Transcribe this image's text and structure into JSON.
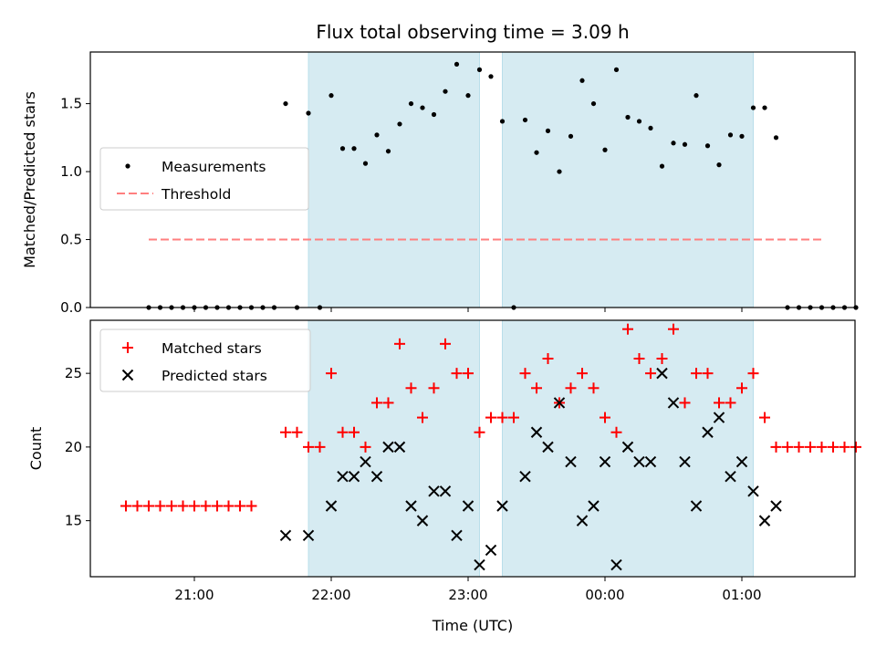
{
  "chart_data": {
    "title": "Flux total observing time = 3.09 h",
    "xlabel": "Time (UTC)",
    "x_ticks": [
      "21:00",
      "22:00",
      "23:00",
      "00:00",
      "01:00"
    ],
    "x_start": "20:30",
    "x_end": "01:40",
    "shaded_intervals": [
      [
        "21:50",
        "23:05"
      ],
      [
        "23:15",
        "01:05"
      ]
    ],
    "shade_color": "#add8e6",
    "top": {
      "type": "scatter",
      "ylabel": "Matched/Predicted stars",
      "ylim": [
        0,
        1.88
      ],
      "yticks": [
        "0.0",
        "0.5",
        "1.0",
        "1.5"
      ],
      "legend": {
        "placement": "center-left",
        "labels": [
          "Measurements",
          "Threshold"
        ]
      },
      "threshold": {
        "name": "Threshold",
        "value": 0.5,
        "x_from": "20:40",
        "x_to": "01:35",
        "color": "#ff7f7f"
      },
      "series": [
        {
          "name": "Measurements",
          "color": "#000000",
          "points": [
            [
              "20:40",
              0
            ],
            [
              "20:45",
              0
            ],
            [
              "20:50",
              0
            ],
            [
              "20:55",
              0
            ],
            [
              "21:00",
              0
            ],
            [
              "21:05",
              0
            ],
            [
              "21:10",
              0
            ],
            [
              "21:15",
              0
            ],
            [
              "21:20",
              0
            ],
            [
              "21:25",
              0
            ],
            [
              "21:30",
              0
            ],
            [
              "21:35",
              0
            ],
            [
              "21:40",
              1.5
            ],
            [
              "21:45",
              0
            ],
            [
              "21:50",
              1.43
            ],
            [
              "21:55",
              0
            ],
            [
              "22:00",
              1.56
            ],
            [
              "22:05",
              1.17
            ],
            [
              "22:10",
              1.17
            ],
            [
              "22:15",
              1.06
            ],
            [
              "22:20",
              1.27
            ],
            [
              "22:25",
              1.15
            ],
            [
              "22:30",
              1.35
            ],
            [
              "22:35",
              1.5
            ],
            [
              "22:40",
              1.47
            ],
            [
              "22:45",
              1.42
            ],
            [
              "22:50",
              1.59
            ],
            [
              "22:55",
              1.79
            ],
            [
              "23:00",
              1.56
            ],
            [
              "23:05",
              1.75
            ],
            [
              "23:10",
              1.7
            ],
            [
              "23:15",
              1.37
            ],
            [
              "23:20",
              0
            ],
            [
              "23:25",
              1.38
            ],
            [
              "23:30",
              1.14
            ],
            [
              "23:35",
              1.3
            ],
            [
              "23:40",
              1.0
            ],
            [
              "23:45",
              1.26
            ],
            [
              "23:50",
              1.67
            ],
            [
              "23:55",
              1.5
            ],
            [
              "00:00",
              1.16
            ],
            [
              "00:05",
              1.75
            ],
            [
              "00:10",
              1.4
            ],
            [
              "00:15",
              1.37
            ],
            [
              "00:20",
              1.32
            ],
            [
              "00:25",
              1.04
            ],
            [
              "00:30",
              1.21
            ],
            [
              "00:35",
              1.2
            ],
            [
              "00:40",
              1.56
            ],
            [
              "00:45",
              1.19
            ],
            [
              "00:50",
              1.05
            ],
            [
              "00:55",
              1.27
            ],
            [
              "01:00",
              1.26
            ],
            [
              "01:05",
              1.47
            ],
            [
              "01:10",
              1.47
            ],
            [
              "01:15",
              1.25
            ],
            [
              "01:20",
              0
            ],
            [
              "01:25",
              0
            ],
            [
              "01:30",
              0
            ],
            [
              "01:35",
              0
            ],
            [
              "01:40",
              0
            ],
            [
              "01:45",
              0
            ],
            [
              "01:50",
              0
            ]
          ]
        }
      ]
    },
    "bottom": {
      "type": "scatter",
      "ylabel": "Count",
      "ylim": [
        11.2,
        28.6
      ],
      "yticks": [
        "15",
        "20",
        "25"
      ],
      "legend": {
        "placement": "upper-left",
        "labels": [
          "Matched stars",
          "Predicted stars"
        ]
      },
      "series": [
        {
          "name": "Matched stars",
          "marker": "plus",
          "color": "#ff0000",
          "points": [
            [
              "20:30",
              16
            ],
            [
              "20:35",
              16
            ],
            [
              "20:40",
              16
            ],
            [
              "20:45",
              16
            ],
            [
              "20:50",
              16
            ],
            [
              "20:55",
              16
            ],
            [
              "21:00",
              16
            ],
            [
              "21:05",
              16
            ],
            [
              "21:10",
              16
            ],
            [
              "21:15",
              16
            ],
            [
              "21:20",
              16
            ],
            [
              "21:25",
              16
            ],
            [
              "21:40",
              21
            ],
            [
              "21:45",
              21
            ],
            [
              "21:50",
              20
            ],
            [
              "21:55",
              20
            ],
            [
              "22:00",
              25
            ],
            [
              "22:05",
              21
            ],
            [
              "22:10",
              21
            ],
            [
              "22:15",
              20
            ],
            [
              "22:20",
              23
            ],
            [
              "22:25",
              23
            ],
            [
              "22:30",
              27
            ],
            [
              "22:35",
              24
            ],
            [
              "22:40",
              22
            ],
            [
              "22:45",
              24
            ],
            [
              "22:50",
              27
            ],
            [
              "22:55",
              25
            ],
            [
              "23:00",
              25
            ],
            [
              "23:05",
              21
            ],
            [
              "23:10",
              22
            ],
            [
              "23:15",
              22
            ],
            [
              "23:20",
              22
            ],
            [
              "23:25",
              25
            ],
            [
              "23:30",
              24
            ],
            [
              "23:35",
              26
            ],
            [
              "23:40",
              23
            ],
            [
              "23:45",
              24
            ],
            [
              "23:50",
              25
            ],
            [
              "23:55",
              24
            ],
            [
              "00:00",
              22
            ],
            [
              "00:05",
              21
            ],
            [
              "00:10",
              28
            ],
            [
              "00:15",
              26
            ],
            [
              "00:20",
              25
            ],
            [
              "00:25",
              26
            ],
            [
              "00:30",
              28
            ],
            [
              "00:35",
              23
            ],
            [
              "00:40",
              25
            ],
            [
              "00:45",
              25
            ],
            [
              "00:50",
              23
            ],
            [
              "00:55",
              23
            ],
            [
              "01:00",
              24
            ],
            [
              "01:05",
              25
            ],
            [
              "01:10",
              22
            ],
            [
              "01:15",
              20
            ],
            [
              "01:20",
              20
            ],
            [
              "01:25",
              20
            ],
            [
              "01:30",
              20
            ],
            [
              "01:35",
              20
            ],
            [
              "01:40",
              20
            ],
            [
              "01:45",
              20
            ],
            [
              "01:50",
              20
            ]
          ]
        },
        {
          "name": "Predicted stars",
          "marker": "cross",
          "color": "#000000",
          "points": [
            [
              "21:40",
              14
            ],
            [
              "21:50",
              14
            ],
            [
              "22:00",
              16
            ],
            [
              "22:05",
              18
            ],
            [
              "22:10",
              18
            ],
            [
              "22:15",
              19
            ],
            [
              "22:20",
              18
            ],
            [
              "22:25",
              20
            ],
            [
              "22:30",
              20
            ],
            [
              "22:35",
              16
            ],
            [
              "22:40",
              15
            ],
            [
              "22:45",
              17
            ],
            [
              "22:50",
              17
            ],
            [
              "22:55",
              14
            ],
            [
              "23:00",
              16
            ],
            [
              "23:05",
              12
            ],
            [
              "23:10",
              13
            ],
            [
              "23:15",
              16
            ],
            [
              "23:25",
              18
            ],
            [
              "23:30",
              21
            ],
            [
              "23:35",
              20
            ],
            [
              "23:40",
              23
            ],
            [
              "23:45",
              19
            ],
            [
              "23:50",
              15
            ],
            [
              "23:55",
              16
            ],
            [
              "00:00",
              19
            ],
            [
              "00:05",
              12
            ],
            [
              "00:10",
              20
            ],
            [
              "00:15",
              19
            ],
            [
              "00:20",
              19
            ],
            [
              "00:25",
              25
            ],
            [
              "00:30",
              23
            ],
            [
              "00:35",
              19
            ],
            [
              "00:40",
              16
            ],
            [
              "00:45",
              21
            ],
            [
              "00:50",
              22
            ],
            [
              "00:55",
              18
            ],
            [
              "01:00",
              19
            ],
            [
              "01:05",
              17
            ],
            [
              "01:10",
              15
            ],
            [
              "01:15",
              16
            ]
          ]
        }
      ]
    }
  }
}
